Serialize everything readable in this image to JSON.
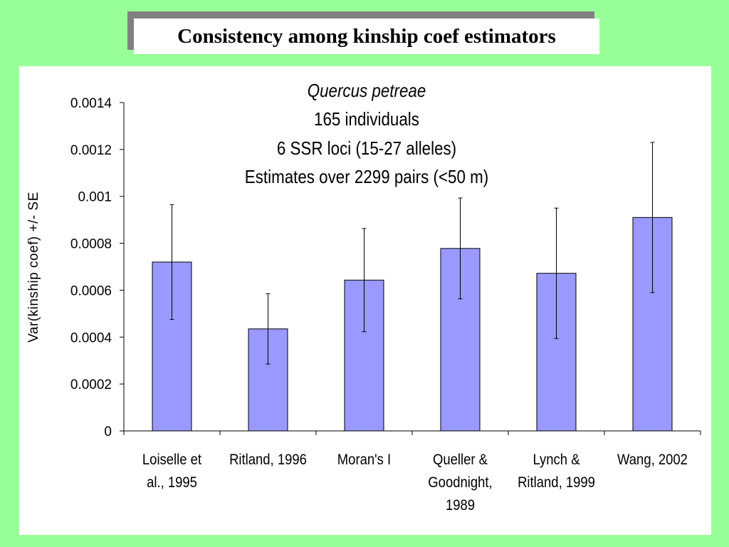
{
  "slide": {
    "title": "Consistency among kinship coef estimators"
  },
  "chart_data": {
    "type": "bar",
    "annotations": [
      "Quercus petreae",
      "165 individuals",
      "6 SSR loci (15-27 alleles)",
      "Estimates over 2299 pairs (<50 m)"
    ],
    "ylabel": "Var(kinship coef) +/- SE",
    "xlabel": "",
    "categories": [
      [
        "Loiselle et",
        "al., 1995"
      ],
      [
        "Ritland, 1996"
      ],
      [
        "Moran's I"
      ],
      [
        "Queller &",
        "Goodnight,",
        "1989"
      ],
      [
        "Lynch &",
        "Ritland, 1999"
      ],
      [
        "Wang, 2002"
      ]
    ],
    "series": [
      {
        "values": [
          0.00072,
          0.000435,
          0.000643,
          0.000778,
          0.000672,
          0.00091
        ],
        "errors": [
          0.000245,
          0.00015,
          0.00022,
          0.000215,
          0.000278,
          0.00032
        ]
      }
    ],
    "ylim": [
      0,
      0.0014
    ],
    "yticks": [
      "0",
      "0.0002",
      "0.0004",
      "0.0006",
      "0.0008",
      "0.001",
      "0.0012",
      "0.0014"
    ],
    "colors": {
      "bar": "#9999ff",
      "bar_edge": "#000000",
      "axis": "#000000"
    },
    "grid": false,
    "error_bars": true
  }
}
